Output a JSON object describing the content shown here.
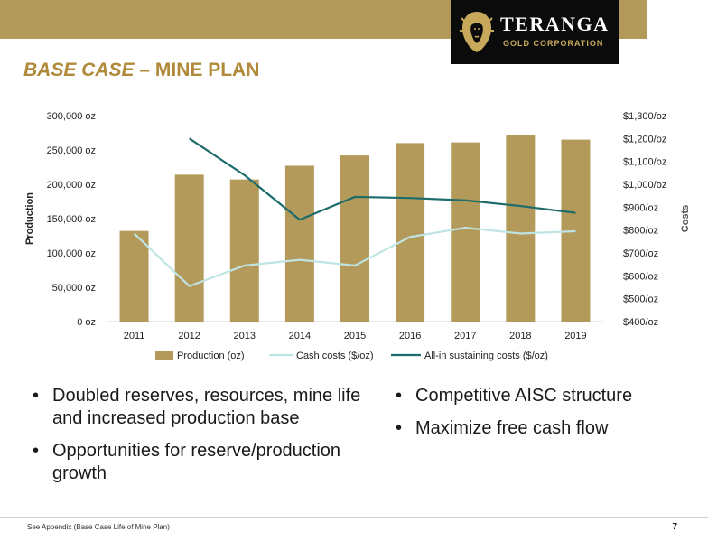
{
  "brand": {
    "name": "TERANGA",
    "subtitle": "GOLD CORPORATION"
  },
  "slide": {
    "title_italic": "BASE CASE",
    "title_rest": " –  MINE PLAN",
    "page_number": "7",
    "footnote": "See Appendix (Base Case Life of Mine Plan)"
  },
  "colors": {
    "band": "#b39a5a",
    "bars": "#b39a5a",
    "cash": "#bfe4e4",
    "aisc": "#1e6b6b",
    "title": "#b08a3a"
  },
  "bullets_left": [
    "Doubled reserves, resources, mine life and increased production base",
    "Opportunities for reserve/production growth"
  ],
  "bullets_right": [
    "Competitive AISC structure",
    "Maximize free cash flow"
  ],
  "chart_data": {
    "type": "bar",
    "categories": [
      "2011",
      "2012",
      "2013",
      "2014",
      "2015",
      "2016",
      "2017",
      "2018",
      "2019"
    ],
    "ylabel": "Production",
    "y2label": "Costs",
    "ylim": [
      0,
      300000
    ],
    "y2lim": [
      400,
      1300
    ],
    "yticks": [
      "0 oz",
      "50,000 oz",
      "100,000 oz",
      "150,000 oz",
      "200,000 oz",
      "250,000 oz",
      "300,000 oz"
    ],
    "y2ticks": [
      "$400/oz",
      "$500/oz",
      "$600/oz",
      "$700/oz",
      "$800/oz",
      "$900/oz",
      "$1,000/oz",
      "$1,100/oz",
      "$1,200/oz",
      "$1,300/oz"
    ],
    "grid": false,
    "legend_position": "bottom",
    "series": [
      {
        "name": "Production (oz)",
        "type": "bar",
        "axis": "left",
        "values": [
          132000,
          214000,
          207000,
          227000,
          242000,
          260000,
          261000,
          272000,
          265000
        ]
      },
      {
        "name": "Cash costs ($/oz)",
        "type": "line",
        "axis": "right",
        "values": [
          785,
          555,
          645,
          670,
          645,
          770,
          810,
          785,
          795
        ]
      },
      {
        "name": "All-in sustaining costs ($/oz)",
        "type": "line",
        "axis": "right",
        "values": [
          null,
          1200,
          1040,
          845,
          945,
          940,
          930,
          905,
          875
        ]
      }
    ]
  }
}
